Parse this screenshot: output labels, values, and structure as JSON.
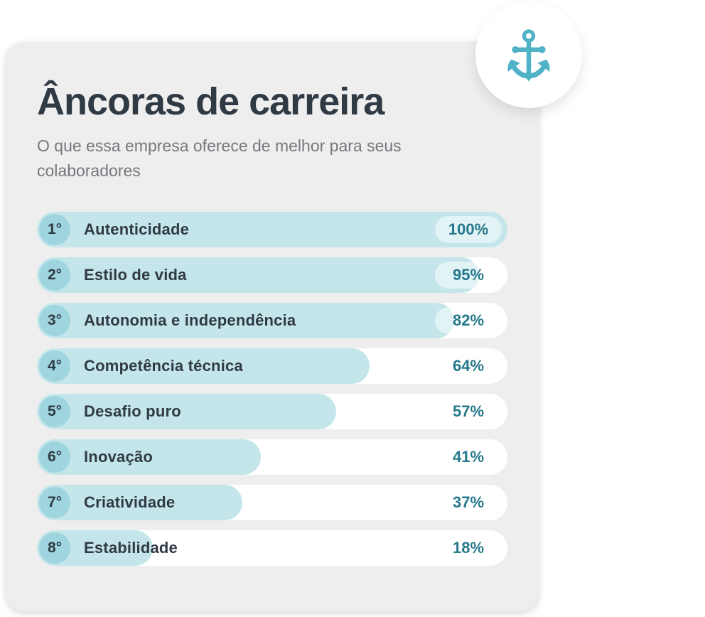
{
  "card": {
    "title": "Âncoras de carreira",
    "subtitle": "O que essa empresa oferece de melhor para seus colaboradores"
  },
  "chart_data": {
    "type": "bar",
    "orientation": "horizontal",
    "title": "Âncoras de carreira",
    "subtitle": "O que essa empresa oferece de melhor para seus colaboradores",
    "xlim": [
      0,
      100
    ],
    "grid": false,
    "legend": false,
    "value_suffix": "%",
    "ranks": [
      "1°",
      "2°",
      "3°",
      "4°",
      "5°",
      "6°",
      "7°",
      "8°"
    ],
    "categories": [
      "Autenticidade",
      "Estilo de vida",
      "Autonomia e independência",
      "Competência técnica",
      "Desafio puro",
      "Inovação",
      "Criatividade",
      "Estabilidade"
    ],
    "values": [
      100,
      95,
      82,
      64,
      57,
      41,
      37,
      18
    ],
    "value_labels": [
      "100%",
      "95%",
      "82%",
      "64%",
      "57%",
      "41%",
      "37%",
      "18%"
    ]
  },
  "icon": {
    "name": "anchor",
    "color": "#4FB2C7"
  },
  "colors": {
    "accent": "#4FB2C7",
    "bar_fill": "#C4E6EB",
    "rank_badge": "#9ED5DE",
    "value_text": "#26798B",
    "title_text": "#303A45",
    "subtitle_text": "#75787D",
    "card_bg": "#EEEEEE",
    "row_bg": "#FFFFFF"
  }
}
